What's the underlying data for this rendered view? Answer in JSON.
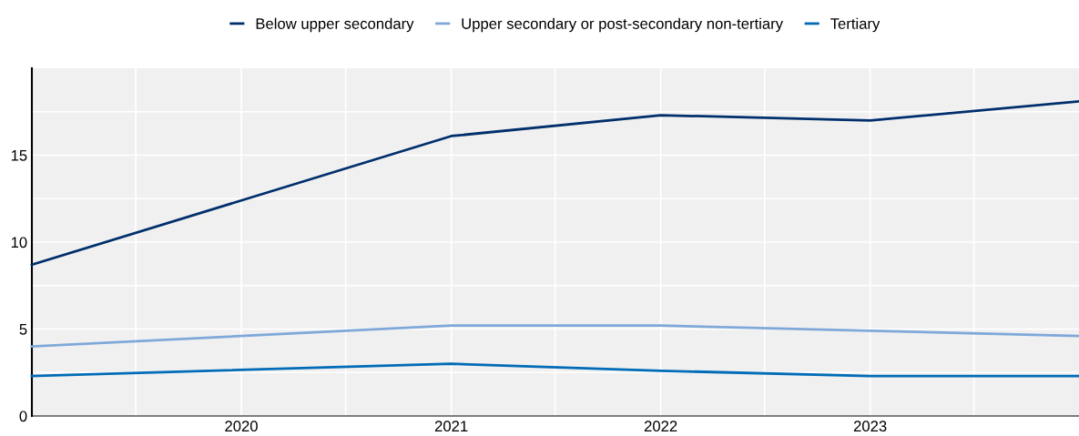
{
  "chart_data": {
    "type": "line",
    "x": [
      "2019-01-01",
      "2021-01-01",
      "2022-01-01",
      "2023-01-01",
      "2023-12-31"
    ],
    "series": [
      {
        "name": "Below upper secondary",
        "color": "#002f6c",
        "values": [
          8.7,
          16.1,
          17.3,
          17.0,
          18.1
        ]
      },
      {
        "name": "Upper secondary or post-secondary non-tertiary",
        "color": "#7fa8d9",
        "values": [
          4.0,
          5.2,
          5.2,
          4.9,
          4.6
        ]
      },
      {
        "name": "Tertiary",
        "color": "#006bb6",
        "values": [
          2.3,
          3.0,
          2.6,
          2.3,
          2.3
        ]
      }
    ],
    "xlim": [
      "2019-01-01",
      "2023-12-31"
    ],
    "xticks": [
      {
        "value": "2019-07-01",
        "label": null
      },
      {
        "value": "2020-01-01",
        "label": "2020"
      },
      {
        "value": "2020-07-01",
        "label": null
      },
      {
        "value": "2021-01-01",
        "label": "2021"
      },
      {
        "value": "2021-07-01",
        "label": null
      },
      {
        "value": "2022-01-01",
        "label": "2022"
      },
      {
        "value": "2022-07-01",
        "label": null
      },
      {
        "value": "2023-01-01",
        "label": "2023"
      },
      {
        "value": "2023-07-01",
        "label": null
      }
    ],
    "ylim": [
      0,
      20
    ],
    "yticks": [
      0,
      {
        "value": 2.5,
        "label": null
      },
      5,
      {
        "value": 7.5,
        "label": null
      },
      10,
      {
        "value": 12.5,
        "label": null
      },
      15,
      {
        "value": 17.5,
        "label": null
      }
    ],
    "grid": true,
    "legend": "top",
    "marker": "none",
    "line_style": "solid"
  }
}
